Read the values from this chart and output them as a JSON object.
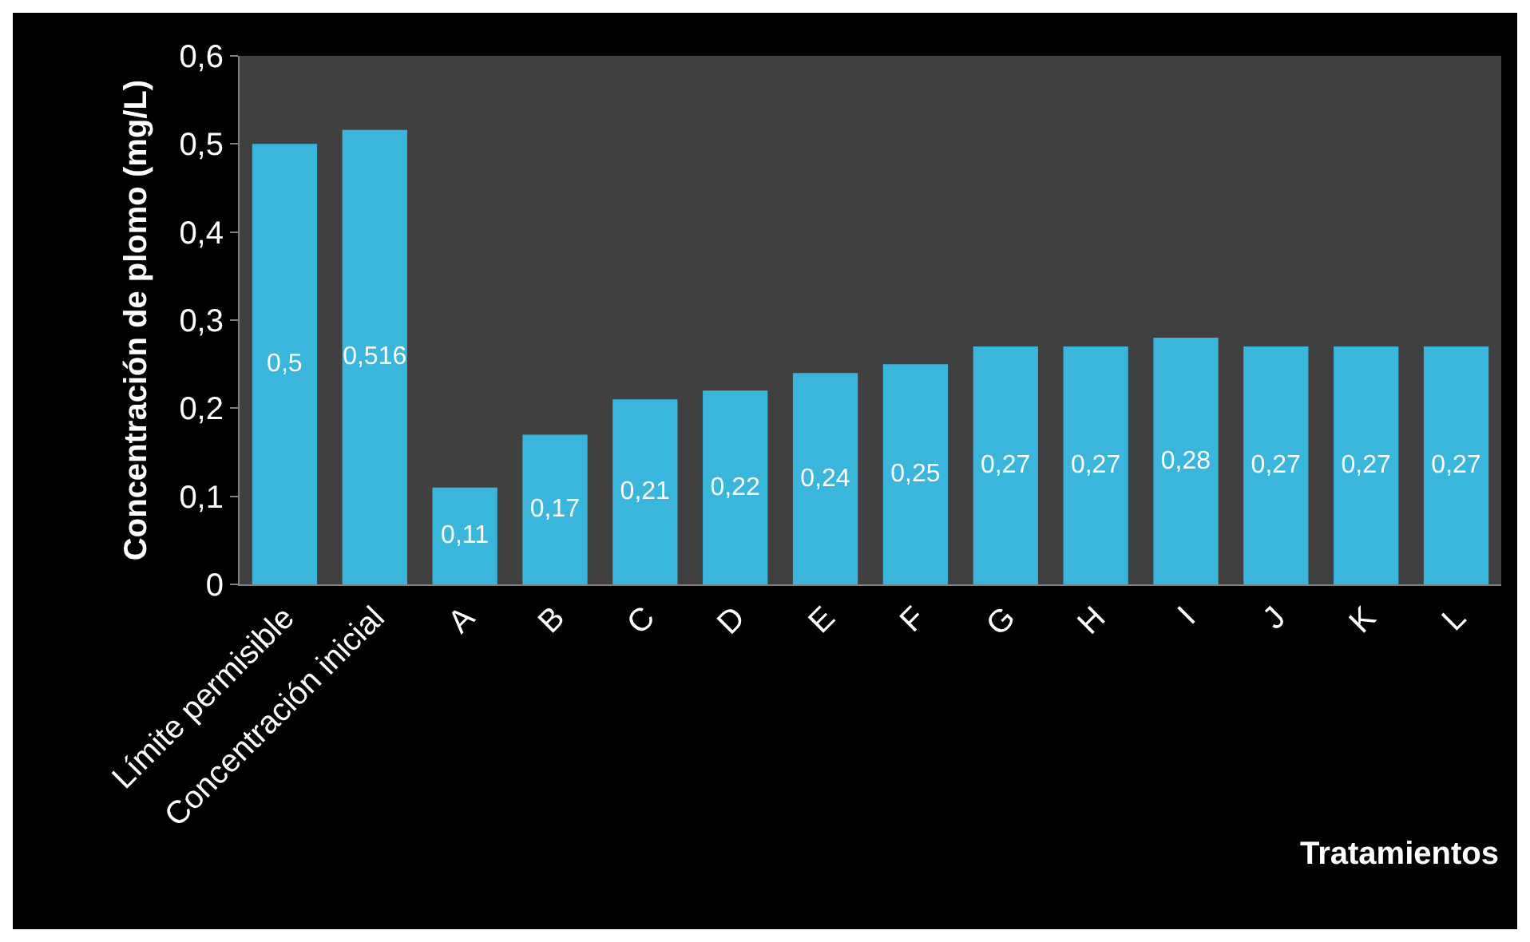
{
  "chart_data": {
    "type": "bar",
    "xlabel": "Tratamientos",
    "ylabel": "Concentración de plomo (mg/L)",
    "categories": [
      "Límite permisible",
      "Concentración inicial",
      "A",
      "B",
      "C",
      "D",
      "E",
      "F",
      "G",
      "H",
      "I",
      "J",
      "K",
      "L"
    ],
    "values": [
      0.5,
      0.516,
      0.11,
      0.17,
      0.21,
      0.22,
      0.24,
      0.25,
      0.27,
      0.27,
      0.28,
      0.27,
      0.27,
      0.27
    ],
    "value_labels": [
      "0,5",
      "0,516",
      "0,11",
      "0,17",
      "0,21",
      "0,22",
      "0,24",
      "0,25",
      "0,27",
      "0,27",
      "0,28",
      "0,27",
      "0,27",
      "0,27"
    ],
    "color": "#3ab6dc",
    "ylim": [
      0,
      0.6
    ],
    "yticks": [
      0,
      {
        "value": 0.1,
        "label": "0,1"
      },
      {
        "value": 0.2,
        "label": "0,2"
      },
      {
        "value": 0.3,
        "label": "0,3"
      },
      {
        "value": 0.4,
        "label": "0,4"
      },
      {
        "value": 0.5,
        "label": "0,5"
      },
      {
        "value": 0.6,
        "label": "0,6"
      }
    ]
  }
}
